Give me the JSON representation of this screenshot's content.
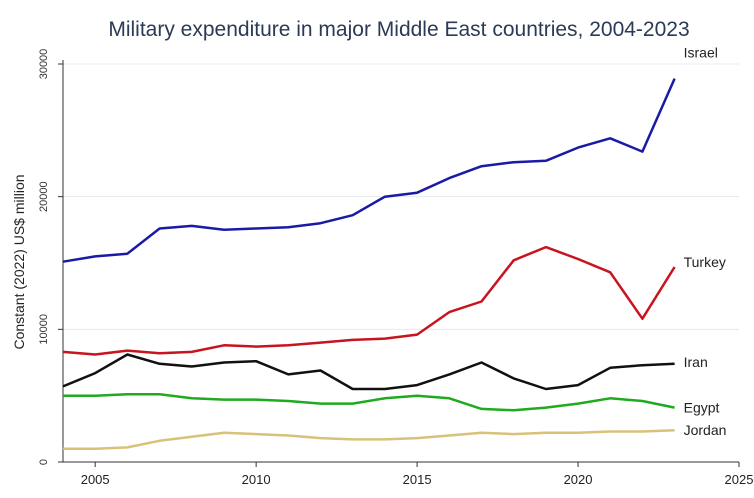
{
  "chart_data": {
    "type": "line",
    "title": "Military expenditure in major Middle East countries, 2004-2023",
    "ylabel": "Constant (2022) US$ million",
    "xlabel": "",
    "xlim": [
      2004,
      2025
    ],
    "ylim": [
      0,
      30000
    ],
    "xticks": [
      2005,
      2010,
      2015,
      2020,
      2025
    ],
    "yticks": [
      0,
      10000,
      20000,
      30000
    ],
    "grid": true,
    "legend": "direct labels at line ends",
    "x": [
      2004,
      2005,
      2006,
      2007,
      2008,
      2009,
      2010,
      2011,
      2012,
      2013,
      2014,
      2015,
      2016,
      2017,
      2018,
      2019,
      2020,
      2021,
      2022,
      2023
    ],
    "series": [
      {
        "name": "Israel",
        "color": "#1a1aa6",
        "values": [
          15100,
          15500,
          15700,
          17600,
          17800,
          17500,
          17600,
          17700,
          18000,
          18600,
          20000,
          20300,
          21400,
          22300,
          22600,
          22700,
          23700,
          24400,
          23400,
          28900
        ]
      },
      {
        "name": "Turkey",
        "color": "#c8141e",
        "values": [
          8300,
          8100,
          8400,
          8200,
          8300,
          8800,
          8700,
          8800,
          9000,
          9200,
          9300,
          9600,
          11300,
          12100,
          15200,
          16200,
          15300,
          14300,
          10800,
          14700
        ]
      },
      {
        "name": "Iran",
        "color": "#111111",
        "values": [
          5700,
          6700,
          8100,
          7400,
          7200,
          7500,
          7600,
          6600,
          6900,
          5500,
          5500,
          5800,
          6600,
          7500,
          6300,
          5500,
          5800,
          7100,
          7300,
          7400
        ]
      },
      {
        "name": "Egypt",
        "color": "#1faa1f",
        "values": [
          5000,
          5000,
          5100,
          5100,
          4800,
          4700,
          4700,
          4600,
          4400,
          4400,
          4800,
          5000,
          4800,
          4000,
          3900,
          4100,
          4400,
          4800,
          4600,
          4100
        ]
      },
      {
        "name": "Jordan",
        "color": "#d8c27a",
        "values": [
          1000,
          1000,
          1100,
          1600,
          1900,
          2200,
          2100,
          2000,
          1800,
          1700,
          1700,
          1800,
          2000,
          2200,
          2100,
          2200,
          2200,
          2300,
          2300,
          2400
        ]
      }
    ]
  }
}
